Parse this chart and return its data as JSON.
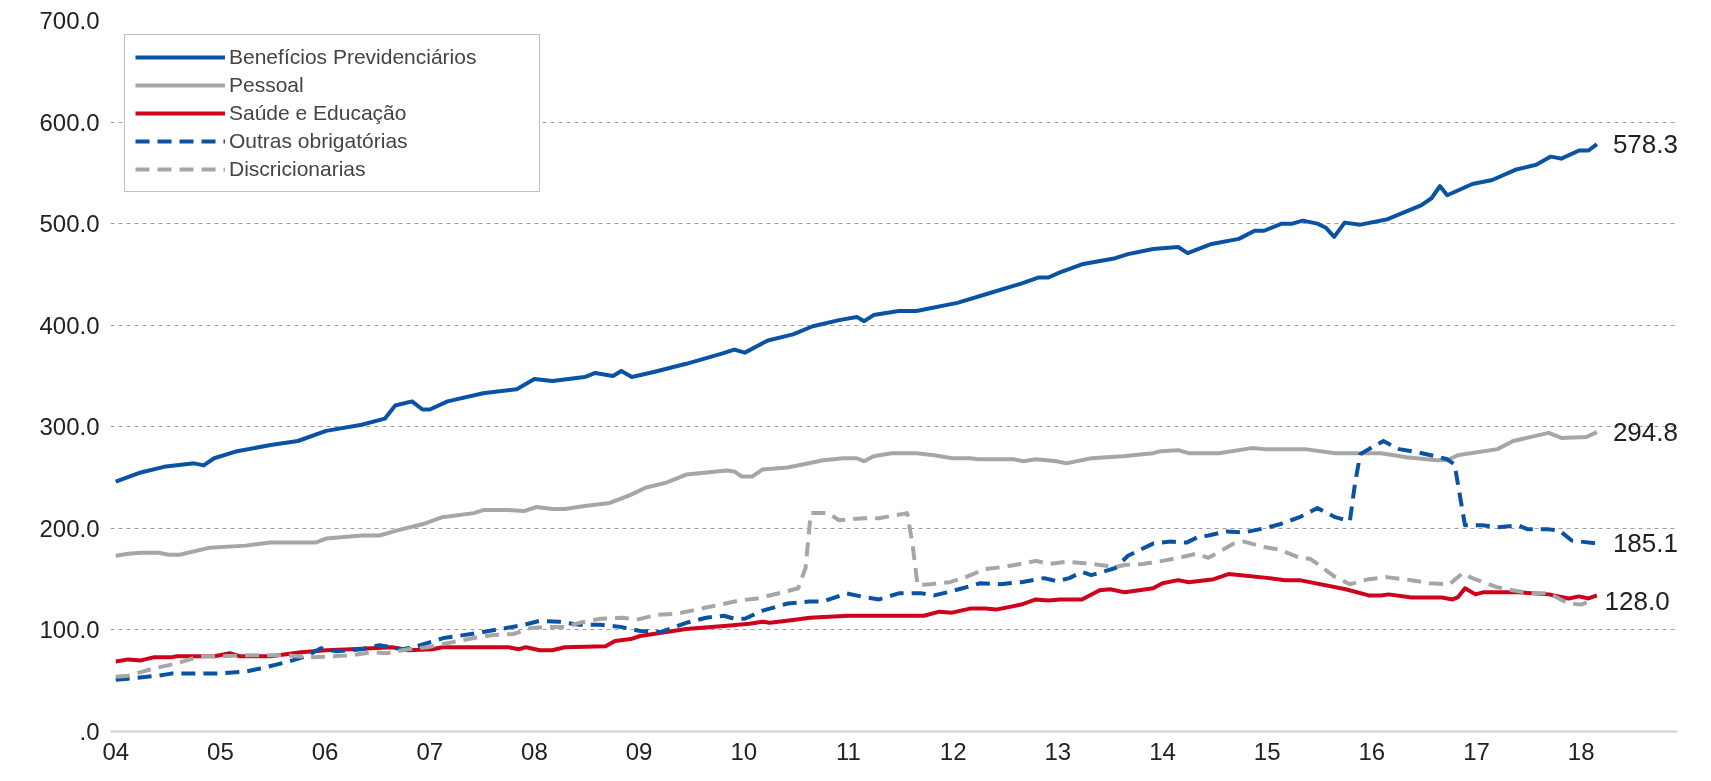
{
  "chart_data": {
    "type": "line",
    "xlim": [
      2003.95,
      2018.92
    ],
    "xticks": [
      {
        "value": 2004,
        "label": "04"
      },
      {
        "value": 2005,
        "label": "05"
      },
      {
        "value": 2006,
        "label": "06"
      },
      {
        "value": 2007,
        "label": "07"
      },
      {
        "value": 2008,
        "label": "08"
      },
      {
        "value": 2009,
        "label": "09"
      },
      {
        "value": 2010,
        "label": "10"
      },
      {
        "value": 2011,
        "label": "11"
      },
      {
        "value": 2012,
        "label": "12"
      },
      {
        "value": 2013,
        "label": "13"
      },
      {
        "value": 2014,
        "label": "14"
      },
      {
        "value": 2015,
        "label": "15"
      },
      {
        "value": 2016,
        "label": "16"
      },
      {
        "value": 2017,
        "label": "17"
      },
      {
        "value": 2018,
        "label": "18"
      }
    ],
    "ylim": [
      0,
      700
    ],
    "yticks": [
      {
        "value": 0,
        "label": ".0"
      },
      {
        "value": 100,
        "label": "100.0"
      },
      {
        "value": 200,
        "label": "200.0"
      },
      {
        "value": 300,
        "label": "300.0"
      },
      {
        "value": 400,
        "label": "400.0"
      },
      {
        "value": 500,
        "label": "500.0"
      },
      {
        "value": 600,
        "label": "600.0"
      },
      {
        "value": 700,
        "label": "700.0"
      }
    ],
    "grid": "y",
    "legend": "top left",
    "series": [
      {
        "name": "Benefícios Previdenciários",
        "color": "#0a52a3",
        "line_style": "solid",
        "x": [
          2004.0,
          2004.24,
          2004.48,
          2004.75,
          2004.84,
          2004.94,
          2005.16,
          2005.48,
          2005.74,
          2006.01,
          2006.35,
          2006.57,
          2006.67,
          2006.83,
          2006.93,
          2007.0,
          2007.17,
          2007.51,
          2007.83,
          2008.0,
          2008.17,
          2008.48,
          2008.58,
          2008.75,
          2008.83,
          2008.93,
          2009.14,
          2009.45,
          2009.79,
          2009.91,
          2010.01,
          2010.23,
          2010.47,
          2010.66,
          2010.91,
          2011.08,
          2011.15,
          2011.24,
          2011.48,
          2011.65,
          2012.04,
          2012.36,
          2012.65,
          2012.82,
          2012.91,
          2013.02,
          2013.23,
          2013.55,
          2013.67,
          2013.91,
          2014.15,
          2014.24,
          2014.47,
          2014.73,
          2014.88,
          2014.97,
          2015.14,
          2015.24,
          2015.34,
          2015.48,
          2015.56,
          2015.64,
          2015.74,
          2015.89,
          2016.14,
          2016.33,
          2016.47,
          2016.57,
          2016.65,
          2016.72,
          2016.96,
          2017.15,
          2017.37,
          2017.57,
          2017.71,
          2017.81,
          2017.98,
          2018.07,
          2018.15
        ],
        "value_labels": [
          null,
          null,
          null,
          null,
          null,
          null,
          null,
          null,
          null,
          null,
          null,
          null,
          null,
          null,
          null,
          null,
          null,
          null,
          null,
          null,
          null,
          null,
          null,
          null,
          null,
          null,
          null,
          null,
          null,
          null,
          null,
          null,
          null,
          null,
          null,
          null,
          null,
          null,
          null,
          null,
          null,
          null,
          null,
          null,
          null,
          null,
          null,
          null,
          null,
          null,
          null,
          null,
          null,
          null,
          null,
          null,
          null,
          null,
          null,
          null,
          null,
          null,
          null,
          null,
          null,
          null,
          null,
          null,
          null,
          null,
          null,
          null,
          null,
          null,
          null,
          null,
          null,
          null,
          "578.3"
        ],
        "values": [
          246,
          255,
          261,
          264,
          262,
          269,
          276,
          282,
          286,
          296,
          302,
          308,
          321,
          325,
          317,
          317,
          325,
          333,
          337,
          347,
          345,
          349,
          353,
          350,
          355,
          349,
          354,
          362,
          372,
          376,
          373,
          385,
          391,
          399,
          405,
          408,
          404,
          410,
          414,
          414,
          422,
          432,
          441,
          447,
          447,
          452,
          460,
          466,
          470,
          475,
          477,
          471,
          480,
          485,
          493,
          493,
          500,
          500,
          503,
          500,
          496,
          487,
          501,
          499,
          504,
          512,
          518,
          525,
          537,
          528,
          539,
          543,
          553,
          558,
          566,
          564,
          572,
          572,
          578.3
        ]
      },
      {
        "name": "Pessoal",
        "color": "#a6a6a6",
        "line_style": "solid",
        "x": [
          2004.0,
          2004.12,
          2004.24,
          2004.41,
          2004.51,
          2004.61,
          2004.9,
          2005.24,
          2005.48,
          2005.91,
          2006.01,
          2006.35,
          2006.52,
          2006.69,
          2006.93,
          2007.12,
          2007.42,
          2007.51,
          2007.75,
          2007.9,
          2008.02,
          2008.17,
          2008.29,
          2008.48,
          2008.72,
          2008.92,
          2009.06,
          2009.26,
          2009.45,
          2009.84,
          2009.91,
          2009.98,
          2010.08,
          2010.18,
          2010.42,
          2010.76,
          2010.95,
          2011.08,
          2011.15,
          2011.24,
          2011.41,
          2011.65,
          2011.82,
          2011.99,
          2012.16,
          2012.24,
          2012.58,
          2012.67,
          2012.79,
          2012.99,
          2013.08,
          2013.32,
          2013.62,
          2013.91,
          2013.98,
          2014.15,
          2014.25,
          2014.54,
          2014.73,
          2014.85,
          2014.97,
          2015.36,
          2015.65,
          2016.09,
          2016.33,
          2016.62,
          2016.72,
          2016.82,
          2017.2,
          2017.35,
          2017.69,
          2017.81,
          2018.05,
          2018.15
        ],
        "value_labels": [
          null,
          null,
          null,
          null,
          null,
          null,
          null,
          null,
          null,
          null,
          null,
          null,
          null,
          null,
          null,
          null,
          null,
          null,
          null,
          null,
          null,
          null,
          null,
          null,
          null,
          null,
          null,
          null,
          null,
          null,
          null,
          null,
          null,
          null,
          null,
          null,
          null,
          null,
          null,
          null,
          null,
          null,
          null,
          null,
          null,
          null,
          null,
          null,
          null,
          null,
          null,
          null,
          null,
          null,
          null,
          null,
          null,
          null,
          null,
          null,
          null,
          null,
          null,
          null,
          null,
          null,
          null,
          null,
          null,
          null,
          null,
          null,
          null,
          "294.8"
        ],
        "values": [
          173,
          175,
          176,
          176,
          174,
          174,
          181,
          183,
          186,
          186,
          190,
          193,
          193,
          198,
          204,
          211,
          215,
          218,
          218,
          217,
          221,
          219,
          219,
          222,
          225,
          233,
          240,
          245,
          253,
          257,
          256,
          251,
          251,
          258,
          260,
          267,
          269,
          269,
          266,
          271,
          274,
          274,
          272,
          269,
          269,
          268,
          268,
          266,
          268,
          266,
          264,
          269,
          271,
          274,
          276,
          277,
          274,
          274,
          277,
          279,
          278,
          278,
          274,
          274,
          270,
          267,
          267,
          272,
          278,
          286,
          294,
          289,
          290,
          294.8
        ]
      },
      {
        "name": "Saúde e Educação",
        "color": "#d0021b",
        "line_style": "solid",
        "x": [
          2004.0,
          2004.12,
          2004.24,
          2004.36,
          2004.53,
          2004.58,
          2004.94,
          2005.09,
          2005.19,
          2005.48,
          2005.77,
          2006.01,
          2006.25,
          2006.64,
          2006.79,
          2007.03,
          2007.12,
          2007.75,
          2007.85,
          2007.92,
          2008.05,
          2008.17,
          2008.29,
          2008.68,
          2008.77,
          2008.92,
          2009.01,
          2009.26,
          2009.45,
          2009.84,
          2010.05,
          2010.18,
          2010.25,
          2010.49,
          2010.63,
          2011.0,
          2011.72,
          2011.87,
          2011.99,
          2012.16,
          2012.31,
          2012.41,
          2012.65,
          2012.79,
          2012.91,
          2013.02,
          2013.23,
          2013.4,
          2013.5,
          2013.64,
          2013.91,
          2014.0,
          2014.15,
          2014.25,
          2014.49,
          2014.63,
          2014.73,
          2015.02,
          2015.17,
          2015.31,
          2015.75,
          2015.97,
          2016.09,
          2016.16,
          2016.38,
          2016.67,
          2016.77,
          2016.82,
          2016.89,
          2016.99,
          2017.06,
          2017.4,
          2017.69,
          2017.88,
          2017.98,
          2018.07,
          2018.15
        ],
        "values": [
          69,
          71,
          70,
          73,
          73,
          74,
          74,
          77,
          74,
          74,
          78,
          80,
          81,
          83,
          80,
          81,
          83,
          83,
          81,
          83,
          80,
          80,
          83,
          84,
          89,
          91,
          94,
          98,
          101,
          104,
          106,
          108,
          107,
          110,
          112,
          114,
          114,
          118,
          117,
          121,
          121,
          120,
          125,
          130,
          129,
          130,
          130,
          139,
          140,
          137,
          141,
          146,
          149,
          147,
          150,
          155,
          154,
          151,
          149,
          149,
          140,
          134,
          134,
          135,
          132,
          132,
          130,
          132,
          141,
          135,
          137,
          137,
          135,
          131,
          133,
          131,
          134
        ]
      },
      {
        "name": "Outras obrigatórias",
        "color": "#0a52a3",
        "line_style": "dashed",
        "x": [
          2004.0,
          2004.12,
          2004.41,
          2004.53,
          2004.75,
          2004.97,
          2005.24,
          2005.38,
          2005.62,
          2005.82,
          2005.96,
          2006.11,
          2006.35,
          2006.52,
          2006.74,
          2006.88,
          2007.13,
          2007.27,
          2007.51,
          2007.68,
          2007.9,
          2008.05,
          2008.24,
          2008.43,
          2008.63,
          2008.82,
          2009.01,
          2009.21,
          2009.45,
          2009.64,
          2009.81,
          2009.91,
          2010.01,
          2010.18,
          2010.42,
          2010.63,
          2010.76,
          2010.98,
          2011.12,
          2011.29,
          2011.48,
          2011.7,
          2011.82,
          2011.94,
          2012.09,
          2012.26,
          2012.45,
          2012.65,
          2012.87,
          2012.99,
          2013.11,
          2013.23,
          2013.32,
          2013.42,
          2013.55,
          2013.67,
          2013.91,
          2014.08,
          2014.23,
          2014.35,
          2014.44,
          2014.61,
          2014.78,
          2014.97,
          2015.12,
          2015.31,
          2015.48,
          2015.65,
          2015.79,
          2015.84,
          2015.89,
          2015.97,
          2016.11,
          2016.26,
          2016.43,
          2016.65,
          2016.72,
          2016.79,
          2016.89,
          2017.06,
          2017.2,
          2017.4,
          2017.49,
          2017.69,
          2017.79,
          2017.91,
          2018.15
        ],
        "value_labels": [
          null,
          null,
          null,
          null,
          null,
          null,
          null,
          null,
          null,
          null,
          null,
          null,
          null,
          null,
          null,
          null,
          null,
          null,
          null,
          null,
          null,
          null,
          null,
          null,
          null,
          null,
          null,
          null,
          null,
          null,
          null,
          null,
          null,
          null,
          null,
          null,
          null,
          null,
          null,
          null,
          null,
          null,
          null,
          null,
          null,
          null,
          null,
          null,
          null,
          null,
          null,
          null,
          null,
          null,
          null,
          null,
          null,
          null,
          null,
          null,
          null,
          null,
          null,
          null,
          null,
          null,
          null,
          null,
          null,
          null,
          null,
          null,
          null,
          null,
          null,
          null,
          null,
          null,
          null,
          null,
          null,
          null,
          null,
          null,
          null,
          null,
          "185.1"
        ],
        "values": [
          51,
          52,
          55,
          57,
          57,
          57,
          59,
          62,
          68,
          74,
          82,
          79,
          81,
          85,
          81,
          84,
          92,
          94,
          98,
          101,
          105,
          109,
          108,
          105,
          105,
          103,
          99,
          98,
          107,
          112,
          114,
          111,
          111,
          119,
          126,
          128,
          128,
          136,
          133,
          130,
          136,
          136,
          134,
          137,
          141,
          146,
          145,
          147,
          151,
          148,
          151,
          157,
          154,
          157,
          161,
          173,
          185,
          187,
          186,
          192,
          193,
          197,
          196,
          200,
          204,
          211,
          220,
          211,
          207,
          245,
          273,
          278,
          286,
          278,
          275,
          270,
          268,
          263,
          203,
          203,
          201,
          203,
          199,
          199,
          198,
          188,
          185.1
        ]
      },
      {
        "name": "Discricionarias",
        "color": "#a6a6a6",
        "line_style": "dashed",
        "x": [
          2004.0,
          2004.12,
          2004.36,
          2004.58,
          2004.8,
          2004.97,
          2005.24,
          2005.62,
          2005.87,
          2006.06,
          2006.25,
          2006.45,
          2006.59,
          2006.79,
          2006.98,
          2007.22,
          2007.42,
          2007.61,
          2007.8,
          2007.97,
          2008.14,
          2008.29,
          2008.43,
          2008.63,
          2008.85,
          2008.97,
          2009.18,
          2009.36,
          2009.64,
          2009.96,
          2010.13,
          2010.37,
          2010.52,
          2010.59,
          2010.64,
          2010.81,
          2010.91,
          2011.15,
          2011.29,
          2011.56,
          2011.61,
          2011.66,
          2011.78,
          2011.97,
          2012.12,
          2012.31,
          2012.48,
          2012.7,
          2012.79,
          2012.91,
          2013.08,
          2013.23,
          2013.4,
          2013.55,
          2013.64,
          2013.81,
          2014.0,
          2014.2,
          2014.32,
          2014.44,
          2014.68,
          2014.78,
          2014.95,
          2015.12,
          2015.31,
          2015.41,
          2015.48,
          2015.65,
          2015.79,
          2015.97,
          2016.14,
          2016.38,
          2016.55,
          2016.74,
          2016.87,
          2016.96,
          2017.2,
          2017.4,
          2017.54,
          2017.69,
          2017.88,
          2018.0,
          2018.07
        ],
        "value_labels": [
          null,
          null,
          null,
          null,
          null,
          null,
          null,
          null,
          null,
          null,
          null,
          null,
          null,
          null,
          null,
          null,
          null,
          null,
          null,
          null,
          null,
          null,
          null,
          null,
          null,
          null,
          null,
          null,
          null,
          null,
          null,
          null,
          null,
          null,
          null,
          null,
          null,
          null,
          null,
          null,
          null,
          null,
          null,
          null,
          null,
          null,
          null,
          null,
          null,
          null,
          null,
          null,
          null,
          null,
          null,
          null,
          null,
          null,
          null,
          null,
          null,
          null,
          null,
          null,
          null,
          null,
          null,
          null,
          null,
          null,
          null,
          null,
          null,
          null,
          null,
          null,
          null,
          null,
          null,
          null,
          null,
          null,
          "128.0"
        ],
        "values": [
          54,
          55,
          62,
          67,
          74,
          74,
          75,
          75,
          73,
          74,
          75,
          78,
          77,
          81,
          83,
          88,
          92,
          95,
          96,
          102,
          103,
          103,
          107,
          111,
          112,
          110,
          115,
          116,
          122,
          129,
          131,
          137,
          141,
          161,
          215,
          215,
          208,
          210,
          210,
          215,
          186,
          144,
          145,
          147,
          152,
          160,
          162,
          166,
          168,
          165,
          167,
          166,
          164,
          162,
          164,
          165,
          168,
          172,
          175,
          171,
          185,
          187,
          182,
          179,
          171,
          170,
          165,
          152,
          145,
          150,
          152,
          149,
          146,
          145,
          156,
          151,
          142,
          138,
          136,
          136,
          126,
          125,
          128.0
        ]
      }
    ]
  }
}
